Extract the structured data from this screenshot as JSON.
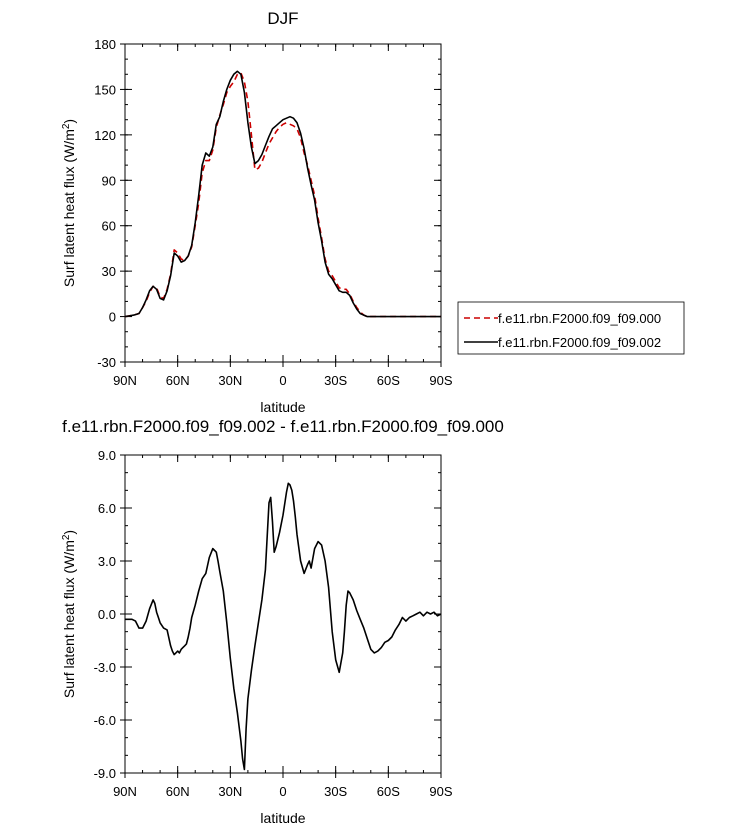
{
  "chart_data": [
    {
      "type": "line",
      "title": "DJF",
      "xlabel": "latitude",
      "ylabel": "Surf latent heat flux (W/m",
      "ylabel_sup": "2",
      "ylabel_close": ")",
      "xlim": [
        90,
        -90
      ],
      "ylim": [
        -30,
        180
      ],
      "xticks": [
        {
          "value": 90,
          "label": "90N"
        },
        {
          "value": 60,
          "label": "60N"
        },
        {
          "value": 30,
          "label": "30N"
        },
        {
          "value": 0,
          "label": "0"
        },
        {
          "value": -30,
          "label": "30S"
        },
        {
          "value": -60,
          "label": "60S"
        },
        {
          "value": -90,
          "label": "90S"
        }
      ],
      "yticks": [
        {
          "value": 180,
          "label": "180"
        },
        {
          "value": 150,
          "label": "150"
        },
        {
          "value": 120,
          "label": "120"
        },
        {
          "value": 90,
          "label": "90"
        },
        {
          "value": 60,
          "label": "60"
        },
        {
          "value": 30,
          "label": "30"
        },
        {
          "value": 0,
          "label": "0"
        },
        {
          "value": -30,
          "label": "-30"
        }
      ],
      "legend_position": "right",
      "series": [
        {
          "name": "f.e11.rbn.F2000.f09_f09.000",
          "color": "#cc0000",
          "dash": "dashed",
          "x": [
            90,
            85,
            82,
            80,
            78,
            76,
            74,
            72,
            70,
            68,
            66,
            64,
            62,
            60,
            58,
            56,
            54,
            52,
            50,
            48,
            46,
            44,
            42,
            40,
            38,
            36,
            34,
            32,
            30,
            28,
            26,
            24,
            22,
            20,
            18,
            16,
            14,
            12,
            10,
            8,
            6,
            4,
            2,
            0,
            -2,
            -4,
            -6,
            -8,
            -10,
            -12,
            -14,
            -16,
            -18,
            -20,
            -22,
            -24,
            -26,
            -28,
            -30,
            -32,
            -34,
            -36,
            -38,
            -40,
            -42,
            -44,
            -46,
            -48,
            -50,
            -52,
            -54,
            -56,
            -58,
            -60,
            -62,
            -64,
            -66,
            -68,
            -70,
            -72,
            -74,
            -76,
            -78,
            -80,
            -82,
            -84,
            -86,
            -88,
            -90
          ],
          "y": [
            0,
            1,
            2,
            6,
            10,
            16,
            20,
            19,
            13,
            12,
            18,
            28,
            44,
            42,
            38,
            37,
            40,
            46,
            60,
            75,
            95,
            103,
            103,
            110,
            125,
            133,
            140,
            148,
            152,
            155,
            160,
            161,
            155,
            142,
            120,
            97,
            98,
            102,
            108,
            114,
            118,
            122,
            125,
            127,
            128,
            127,
            126,
            124,
            118,
            108,
            100,
            90,
            80,
            65,
            52,
            38,
            30,
            27,
            23,
            19,
            18,
            18,
            15,
            10,
            6,
            3,
            1,
            0,
            0,
            0,
            0,
            0,
            0,
            0,
            0,
            0,
            0,
            0,
            0,
            0,
            0,
            0,
            0,
            0,
            0,
            0,
            0,
            0,
            0
          ]
        },
        {
          "name": "f.e11.rbn.F2000.f09_f09.002",
          "color": "#000000",
          "dash": "solid",
          "x": [
            90,
            85,
            82,
            80,
            78,
            76,
            74,
            72,
            70,
            68,
            66,
            64,
            62,
            60,
            58,
            56,
            54,
            52,
            50,
            48,
            46,
            44,
            42,
            40,
            38,
            36,
            34,
            32,
            30,
            28,
            26,
            24,
            22,
            20,
            18,
            16,
            14,
            12,
            10,
            8,
            6,
            4,
            2,
            0,
            -2,
            -4,
            -6,
            -8,
            -10,
            -12,
            -14,
            -16,
            -18,
            -20,
            -22,
            -24,
            -26,
            -28,
            -30,
            -32,
            -34,
            -36,
            -38,
            -40,
            -42,
            -44,
            -46,
            -48,
            -50,
            -52,
            -54,
            -56,
            -58,
            -60,
            -62,
            -64,
            -66,
            -68,
            -70,
            -72,
            -74,
            -76,
            -78,
            -80,
            -82,
            -84,
            -86,
            -88,
            -90
          ],
          "y": [
            0,
            1,
            2,
            6,
            11,
            17,
            20,
            18,
            12,
            11,
            17,
            27,
            42,
            40,
            36,
            37,
            40,
            47,
            62,
            80,
            100,
            108,
            106,
            112,
            127,
            132,
            142,
            150,
            156,
            160,
            162,
            160,
            148,
            128,
            112,
            101,
            103,
            107,
            113,
            119,
            124,
            126,
            128,
            130,
            131,
            132,
            131,
            128,
            121,
            111,
            98,
            87,
            77,
            62,
            50,
            36,
            28,
            25,
            21,
            17,
            16,
            16,
            14,
            9,
            5,
            2,
            1,
            0,
            0,
            0,
            0,
            0,
            0,
            0,
            0,
            0,
            0,
            0,
            0,
            0,
            0,
            0,
            0,
            0,
            0,
            0,
            0,
            0,
            0
          ]
        }
      ]
    },
    {
      "type": "line",
      "title": "f.e11.rbn.F2000.f09_f09.002 - f.e11.rbn.F2000.f09_f09.000",
      "xlabel": "latitude",
      "ylabel": "Surf latent heat flux (W/m",
      "ylabel_sup": "2",
      "ylabel_close": ")",
      "xlim": [
        90,
        -90
      ],
      "ylim": [
        -9,
        9
      ],
      "xticks": [
        {
          "value": 90,
          "label": "90N"
        },
        {
          "value": 60,
          "label": "60N"
        },
        {
          "value": 30,
          "label": "30N"
        },
        {
          "value": 0,
          "label": "0"
        },
        {
          "value": -30,
          "label": "30S"
        },
        {
          "value": -60,
          "label": "60S"
        },
        {
          "value": -90,
          "label": "90S"
        }
      ],
      "yticks": [
        {
          "value": 9,
          "label": "9.0"
        },
        {
          "value": 6,
          "label": "6.0"
        },
        {
          "value": 3,
          "label": "3.0"
        },
        {
          "value": 0,
          "label": "0.0"
        },
        {
          "value": -3,
          "label": "-3.0"
        },
        {
          "value": -6,
          "label": "-6.0"
        },
        {
          "value": -9,
          "label": "-9.0"
        }
      ],
      "series": [
        {
          "color": "#000000",
          "x": [
            90,
            88,
            86,
            84,
            82,
            80,
            78,
            76,
            74,
            73,
            72,
            71,
            70,
            68,
            66,
            64,
            63,
            62,
            61,
            60,
            59,
            58,
            57,
            56,
            55,
            54,
            53,
            52,
            50,
            48,
            46,
            44,
            42,
            40,
            38,
            37,
            36,
            34,
            32,
            30,
            28,
            26,
            24,
            23,
            22,
            21,
            20,
            18,
            16,
            14,
            12,
            10,
            9,
            8,
            7,
            6,
            5,
            4,
            2,
            0,
            -2,
            -3,
            -4,
            -5,
            -6,
            -7,
            -8,
            -10,
            -12,
            -14,
            -15,
            -16,
            -18,
            -20,
            -22,
            -24,
            -26,
            -28,
            -30,
            -32,
            -34,
            -35,
            -36,
            -37,
            -38,
            -40,
            -42,
            -44,
            -46,
            -48,
            -50,
            -52,
            -54,
            -56,
            -58,
            -60,
            -62,
            -64,
            -66,
            -68,
            -70,
            -72,
            -74,
            -76,
            -78,
            -80,
            -82,
            -84,
            -86,
            -88,
            -90
          ],
          "y": [
            -0.3,
            -0.3,
            -0.3,
            -0.4,
            -0.8,
            -0.8,
            -0.4,
            0.3,
            0.8,
            0.6,
            0.1,
            -0.2,
            -0.5,
            -0.8,
            -0.9,
            -1.8,
            -2.1,
            -2.3,
            -2.2,
            -2.1,
            -2.2,
            -2.0,
            -1.9,
            -1.8,
            -1.7,
            -1.3,
            -0.8,
            -0.2,
            0.5,
            1.3,
            2.0,
            2.3,
            3.2,
            3.7,
            3.5,
            3.0,
            2.4,
            1.3,
            -0.5,
            -2.5,
            -4.2,
            -5.6,
            -7.2,
            -8.2,
            -8.8,
            -6.5,
            -4.8,
            -3.2,
            -1.8,
            -0.5,
            0.8,
            2.5,
            4.4,
            6.3,
            6.6,
            5.2,
            3.5,
            3.8,
            4.6,
            5.6,
            6.9,
            7.4,
            7.3,
            7.0,
            6.4,
            5.5,
            4.5,
            3.0,
            2.3,
            2.8,
            3.0,
            2.6,
            3.7,
            4.1,
            3.9,
            3.0,
            1.5,
            -1.0,
            -2.6,
            -3.3,
            -2.2,
            -1.0,
            0.5,
            1.3,
            1.2,
            0.8,
            0.2,
            -0.3,
            -0.8,
            -1.4,
            -2.0,
            -2.2,
            -2.1,
            -1.9,
            -1.6,
            -1.5,
            -1.3,
            -0.9,
            -0.6,
            -0.2,
            -0.4,
            -0.2,
            -0.1,
            0.0,
            0.1,
            -0.1,
            0.1,
            0.0,
            0.1,
            -0.1,
            0.0
          ]
        }
      ]
    }
  ]
}
